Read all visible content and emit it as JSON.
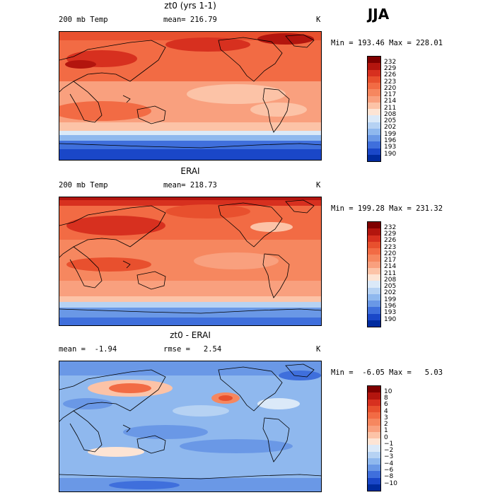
{
  "season": "JJA",
  "panels": [
    {
      "title": "zt0 (yrs 1-1)",
      "left_label": "200 mb Temp",
      "center_label": "mean= 216.79",
      "right_label": "K",
      "minmax": "Min = 193.46 Max = 228.01",
      "colorbar": {
        "labels": [
          "232",
          "229",
          "226",
          "223",
          "220",
          "217",
          "214",
          "211",
          "208",
          "205",
          "202",
          "199",
          "196",
          "193",
          "190"
        ],
        "colors": [
          "#7f0000",
          "#b3150e",
          "#d7301f",
          "#e8502e",
          "#f26b44",
          "#f6875f",
          "#f9a07e",
          "#fcc3a7",
          "#fde4d4",
          "#dbe9f8",
          "#b6d2f3",
          "#8fb8ee",
          "#6a98e6",
          "#3f6fdc",
          "#1a47c8",
          "#002b9e"
        ]
      }
    },
    {
      "title": "ERAI",
      "left_label": "200 mb Temp",
      "center_label": "mean= 218.73",
      "right_label": "K",
      "minmax": "Min = 199.28 Max = 231.32",
      "colorbar": {
        "labels": [
          "232",
          "229",
          "226",
          "223",
          "220",
          "217",
          "214",
          "211",
          "208",
          "205",
          "202",
          "199",
          "196",
          "193",
          "190"
        ],
        "colors": [
          "#7f0000",
          "#b3150e",
          "#d7301f",
          "#e8502e",
          "#f26b44",
          "#f6875f",
          "#f9a07e",
          "#fcc3a7",
          "#fde4d4",
          "#dbe9f8",
          "#b6d2f3",
          "#8fb8ee",
          "#6a98e6",
          "#3f6fdc",
          "#1a47c8",
          "#002b9e"
        ]
      }
    },
    {
      "title": "zt0 - ERAI",
      "left_label": "mean =  -1.94",
      "center_label": "rmse =   2.54",
      "right_label": "K",
      "minmax": "Min =  -6.05 Max =   5.03",
      "colorbar": {
        "labels": [
          "10",
          "8",
          "6",
          "4",
          "3",
          "2",
          "1",
          "0",
          "−1",
          "−2",
          "−3",
          "−4",
          "−6",
          "−8",
          "−10"
        ],
        "colors": [
          "#7f0000",
          "#b3150e",
          "#d7301f",
          "#e8502e",
          "#f26b44",
          "#f6875f",
          "#f9a07e",
          "#fcc3a7",
          "#fde4d4",
          "#dbe9f8",
          "#b6d2f3",
          "#8fb8ee",
          "#6a98e6",
          "#3f6fdc",
          "#1a47c8",
          "#002b9e"
        ]
      }
    }
  ]
}
